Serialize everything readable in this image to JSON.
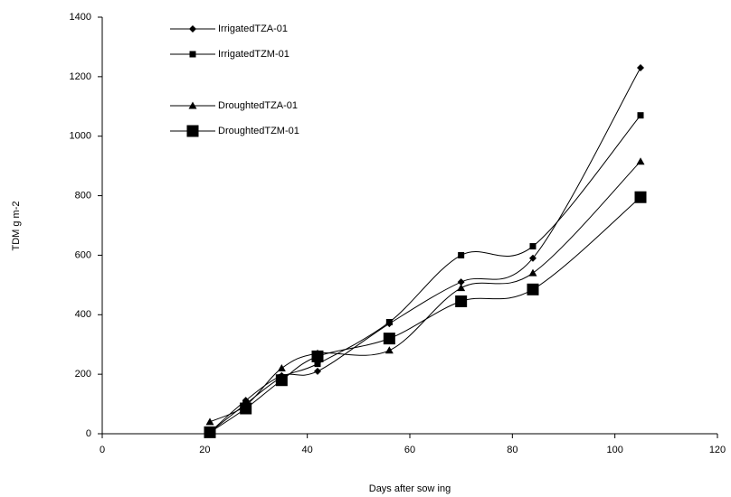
{
  "chart_data": {
    "type": "line",
    "xlabel": "Days after sow ing",
    "ylabel": "TDM g m-2",
    "x": [
      21,
      28,
      35,
      42,
      56,
      70,
      84,
      105
    ],
    "series": [
      {
        "name": "IrrigatedTZA-01",
        "color": "#000000",
        "marker": "diamond",
        "values": [
          5,
          112,
          195,
          210,
          370,
          510,
          590,
          1230
        ]
      },
      {
        "name": "IrrigatedTZM-01",
        "color": "#000000",
        "marker": "square",
        "values": [
          5,
          100,
          190,
          235,
          375,
          600,
          630,
          1070
        ]
      },
      {
        "name": "DroughtedTZA-01",
        "color": "#000000",
        "marker": "triangle",
        "values": [
          40,
          95,
          220,
          270,
          280,
          490,
          540,
          915
        ]
      },
      {
        "name": "DroughtedTZM-01",
        "color": "#000000",
        "marker": "big-square",
        "values": [
          5,
          85,
          180,
          260,
          320,
          445,
          485,
          795
        ]
      }
    ],
    "xlim": [
      0,
      120
    ],
    "xticks": [
      0,
      20,
      40,
      60,
      80,
      100,
      120
    ],
    "ylim": [
      0,
      1400
    ],
    "yticks": [
      0,
      200,
      400,
      600,
      800,
      1000,
      1200,
      1400
    ],
    "smooth": true,
    "legend": "upper-left"
  }
}
